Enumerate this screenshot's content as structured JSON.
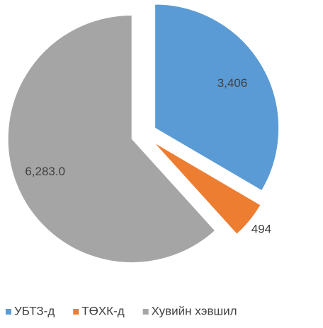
{
  "chart_data": {
    "type": "pie",
    "categories": [
      "УБТЗ-д",
      "ТӨХК-д",
      "Хувийн хэвшил"
    ],
    "values": [
      3406,
      494,
      6283
    ],
    "value_labels": [
      "3,406",
      "494",
      "6,283.0"
    ],
    "colors": [
      "#5b9bd5",
      "#ed7d31",
      "#a5a5a5"
    ],
    "legend": "bottom"
  }
}
